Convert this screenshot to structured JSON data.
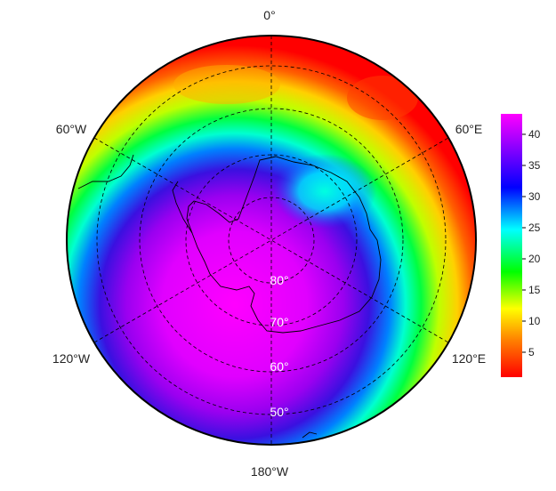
{
  "map": {
    "projection": "south-polar-stereographic",
    "longitude_labels": {
      "top": "0°",
      "upper_left": "60°W",
      "upper_right": "60°E",
      "lower_left": "120°W",
      "lower_right": "120°E",
      "bottom": "180°W"
    },
    "latitude_labels": [
      "80°",
      "70°",
      "60°",
      "50°"
    ],
    "graticule_style": "dashed"
  },
  "colorbar": {
    "ticks": [
      "40",
      "35",
      "30",
      "25",
      "20",
      "15",
      "10",
      "5"
    ],
    "range": [
      1,
      43
    ],
    "colormap": [
      "#ff0000",
      "#ff8000",
      "#ffff00",
      "#00ff00",
      "#00ffff",
      "#0000ff",
      "#8000ff",
      "#ff00ff"
    ]
  }
}
